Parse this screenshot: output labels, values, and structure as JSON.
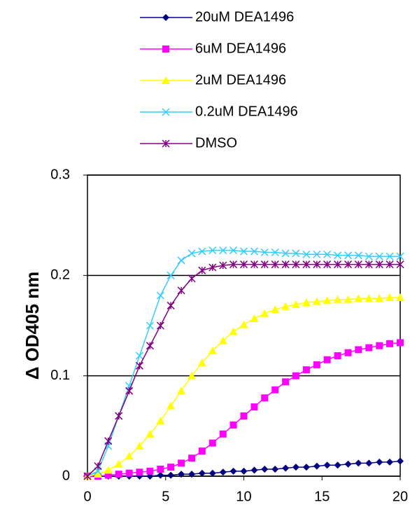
{
  "chart_data": {
    "type": "line",
    "y_label": "Δ OD405 nm",
    "x": [
      0,
      0.67,
      1.33,
      2,
      2.67,
      3.33,
      4,
      4.67,
      5.33,
      6,
      6.67,
      7.33,
      8,
      8.67,
      9.33,
      10,
      10.67,
      11.33,
      12,
      12.67,
      13.33,
      14,
      14.67,
      15.33,
      16,
      16.67,
      17.33,
      18,
      18.67,
      19.33,
      20
    ],
    "series": [
      {
        "name": "20uM DEA1496",
        "color": "#000080",
        "marker": "diamond",
        "values": [
          0,
          0,
          0,
          0,
          0,
          0,
          0,
          0.001,
          0.001,
          0.002,
          0.002,
          0.003,
          0.003,
          0.004,
          0.005,
          0.005,
          0.006,
          0.007,
          0.007,
          0.008,
          0.009,
          0.009,
          0.01,
          0.011,
          0.011,
          0.012,
          0.013,
          0.013,
          0.014,
          0.014,
          0.015
        ]
      },
      {
        "name": "6uM DEA1496",
        "color": "#ff00ff",
        "marker": "square",
        "values": [
          0,
          0,
          0.001,
          0.002,
          0.003,
          0.004,
          0.005,
          0.007,
          0.009,
          0.013,
          0.018,
          0.025,
          0.033,
          0.042,
          0.051,
          0.06,
          0.069,
          0.078,
          0.086,
          0.094,
          0.1,
          0.106,
          0.111,
          0.116,
          0.12,
          0.123,
          0.126,
          0.128,
          0.13,
          0.132,
          0.133
        ]
      },
      {
        "name": "2uM DEA1496",
        "color": "#ffff00",
        "marker": "triangle",
        "values": [
          0,
          0.002,
          0.006,
          0.012,
          0.02,
          0.03,
          0.042,
          0.055,
          0.07,
          0.085,
          0.1,
          0.113,
          0.125,
          0.135,
          0.144,
          0.151,
          0.157,
          0.162,
          0.166,
          0.169,
          0.171,
          0.173,
          0.174,
          0.175,
          0.176,
          0.176,
          0.177,
          0.177,
          0.177,
          0.178,
          0.178
        ]
      },
      {
        "name": "0.2uM DEA1496",
        "color": "#33ccff",
        "marker": "x",
        "values": [
          0,
          0.005,
          0.03,
          0.06,
          0.09,
          0.12,
          0.15,
          0.18,
          0.2,
          0.215,
          0.222,
          0.224,
          0.225,
          0.225,
          0.225,
          0.224,
          0.224,
          0.223,
          0.223,
          0.222,
          0.222,
          0.221,
          0.221,
          0.221,
          0.22,
          0.22,
          0.22,
          0.219,
          0.219,
          0.219,
          0.219
        ]
      },
      {
        "name": "DMSO",
        "color": "#800080",
        "marker": "star",
        "values": [
          0,
          0.01,
          0.035,
          0.06,
          0.085,
          0.11,
          0.13,
          0.15,
          0.17,
          0.185,
          0.197,
          0.205,
          0.208,
          0.21,
          0.211,
          0.211,
          0.211,
          0.211,
          0.211,
          0.211,
          0.211,
          0.211,
          0.211,
          0.211,
          0.211,
          0.211,
          0.211,
          0.211,
          0.211,
          0.211,
          0.211
        ]
      }
    ],
    "xlim": [
      0,
      20
    ],
    "xticks": [
      0,
      5,
      10,
      15,
      20
    ],
    "ylim": [
      0,
      0.3
    ],
    "yticks": [
      0,
      0.1,
      0.2,
      0.3
    ],
    "grid": true,
    "legend": "top"
  }
}
